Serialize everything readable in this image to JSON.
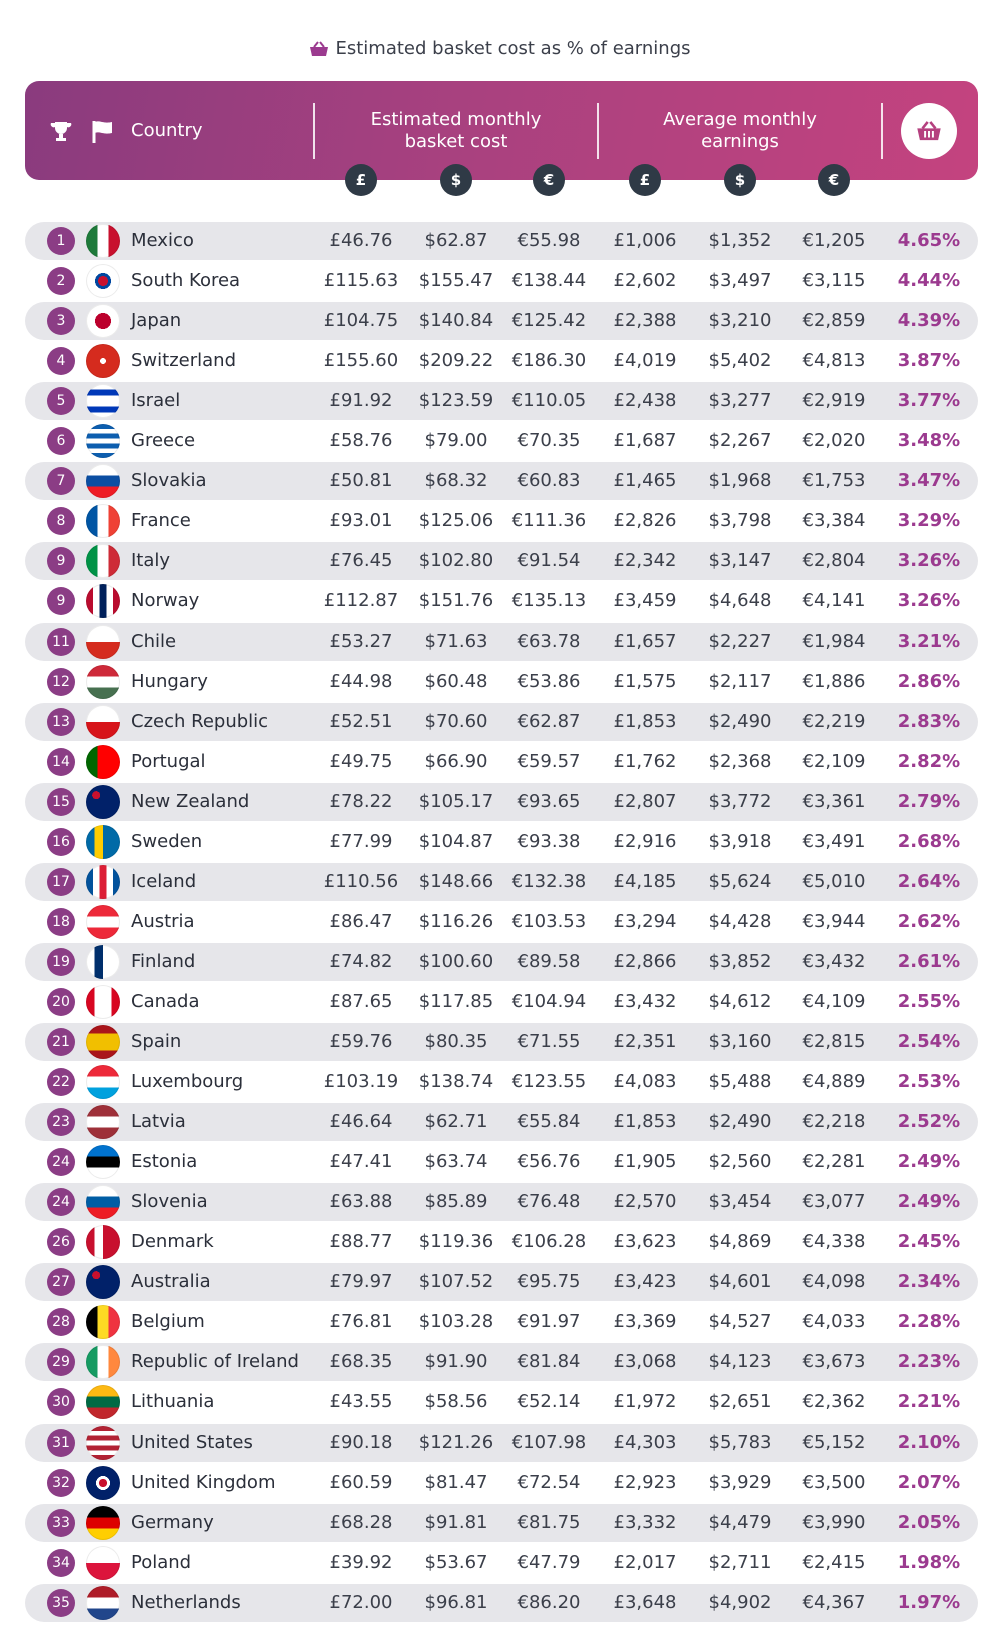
{
  "title": "Estimated basket cost as % of earnings",
  "header": {
    "country": "Country",
    "basket_cost": "Estimated monthly basket cost",
    "earnings": "Average monthly earnings",
    "currencies": [
      "£",
      "$",
      "€",
      "£",
      "$",
      "€"
    ]
  },
  "table": {
    "rows": [
      [
        "1",
        "Mexico",
        "£46.76",
        "$62.87",
        "€55.98",
        "£1,006",
        "$1,352",
        "€1,205",
        "4.65%"
      ],
      [
        "2",
        "South Korea",
        "£115.63",
        "$155.47",
        "€138.44",
        "£2,602",
        "$3,497",
        "€3,115",
        "4.44%"
      ],
      [
        "3",
        "Japan",
        "£104.75",
        "$140.84",
        "€125.42",
        "£2,388",
        "$3,210",
        "€2,859",
        "4.39%"
      ],
      [
        "4",
        "Switzerland",
        "£155.60",
        "$209.22",
        "€186.30",
        "£4,019",
        "$5,402",
        "€4,813",
        "3.87%"
      ],
      [
        "5",
        "Israel",
        "£91.92",
        "$123.59",
        "€110.05",
        "£2,438",
        "$3,277",
        "€2,919",
        "3.77%"
      ],
      [
        "6",
        "Greece",
        "£58.76",
        "$79.00",
        "€70.35",
        "£1,687",
        "$2,267",
        "€2,020",
        "3.48%"
      ],
      [
        "7",
        "Slovakia",
        "£50.81",
        "$68.32",
        "€60.83",
        "£1,465",
        "$1,968",
        "€1,753",
        "3.47%"
      ],
      [
        "8",
        "France",
        "£93.01",
        "$125.06",
        "€111.36",
        "£2,826",
        "$3,798",
        "€3,384",
        "3.29%"
      ],
      [
        "9",
        "Italy",
        "£76.45",
        "$102.80",
        "€91.54",
        "£2,342",
        "$3,147",
        "€2,804",
        "3.26%"
      ],
      [
        "9",
        "Norway",
        "£112.87",
        "$151.76",
        "€135.13",
        "£3,459",
        "$4,648",
        "€4,141",
        "3.26%"
      ],
      [
        "11",
        "Chile",
        "£53.27",
        "$71.63",
        "€63.78",
        "£1,657",
        "$2,227",
        "€1,984",
        "3.21%"
      ],
      [
        "12",
        "Hungary",
        "£44.98",
        "$60.48",
        "€53.86",
        "£1,575",
        "$2,117",
        "€1,886",
        "2.86%"
      ],
      [
        "13",
        "Czech Republic",
        "£52.51",
        "$70.60",
        "€62.87",
        "£1,853",
        "$2,490",
        "€2,219",
        "2.83%"
      ],
      [
        "14",
        "Portugal",
        "£49.75",
        "$66.90",
        "€59.57",
        "£1,762",
        "$2,368",
        "€2,109",
        "2.82%"
      ],
      [
        "15",
        "New Zealand",
        "£78.22",
        "$105.17",
        "€93.65",
        "£2,807",
        "$3,772",
        "€3,361",
        "2.79%"
      ],
      [
        "16",
        "Sweden",
        "£77.99",
        "$104.87",
        "€93.38",
        "£2,916",
        "$3,918",
        "€3,491",
        "2.68%"
      ],
      [
        "17",
        "Iceland",
        "£110.56",
        "$148.66",
        "€132.38",
        "£4,185",
        "$5,624",
        "€5,010",
        "2.64%"
      ],
      [
        "18",
        "Austria",
        "£86.47",
        "$116.26",
        "€103.53",
        "£3,294",
        "$4,428",
        "€3,944",
        "2.62%"
      ],
      [
        "19",
        "Finland",
        "£74.82",
        "$100.60",
        "€89.58",
        "£2,866",
        "$3,852",
        "€3,432",
        "2.61%"
      ],
      [
        "20",
        "Canada",
        "£87.65",
        "$117.85",
        "€104.94",
        "£3,432",
        "$4,612",
        "€4,109",
        "2.55%"
      ],
      [
        "21",
        "Spain",
        "£59.76",
        "$80.35",
        "€71.55",
        "£2,351",
        "$3,160",
        "€2,815",
        "2.54%"
      ],
      [
        "22",
        "Luxembourg",
        "£103.19",
        "$138.74",
        "€123.55",
        "£4,083",
        "$5,488",
        "€4,889",
        "2.53%"
      ],
      [
        "23",
        "Latvia",
        "£46.64",
        "$62.71",
        "€55.84",
        "£1,853",
        "$2,490",
        "€2,218",
        "2.52%"
      ],
      [
        "24",
        "Estonia",
        "£47.41",
        "$63.74",
        "€56.76",
        "£1,905",
        "$2,560",
        "€2,281",
        "2.49%"
      ],
      [
        "24",
        "Slovenia",
        "£63.88",
        "$85.89",
        "€76.48",
        "£2,570",
        "$3,454",
        "€3,077",
        "2.49%"
      ],
      [
        "26",
        "Denmark",
        "£88.77",
        "$119.36",
        "€106.28",
        "£3,623",
        "$4,869",
        "€4,338",
        "2.45%"
      ],
      [
        "27",
        "Australia",
        "£79.97",
        "$107.52",
        "€95.75",
        "£3,423",
        "$4,601",
        "€4,098",
        "2.34%"
      ],
      [
        "28",
        "Belgium",
        "£76.81",
        "$103.28",
        "€91.97",
        "£3,369",
        "$4,527",
        "€4,033",
        "2.28%"
      ],
      [
        "29",
        "Republic of Ireland",
        "£68.35",
        "$91.90",
        "€81.84",
        "£3,068",
        "$4,123",
        "€3,673",
        "2.23%"
      ],
      [
        "30",
        "Lithuania",
        "£43.55",
        "$58.56",
        "€52.14",
        "£1,972",
        "$2,651",
        "€2,362",
        "2.21%"
      ],
      [
        "31",
        "United States",
        "£90.18",
        "$121.26",
        "€107.98",
        "£4,303",
        "$5,783",
        "€5,152",
        "2.10%"
      ],
      [
        "32",
        "United Kingdom",
        "£60.59",
        "$81.47",
        "€72.54",
        "£2,923",
        "$3,929",
        "€3,500",
        "2.07%"
      ],
      [
        "33",
        "Germany",
        "£68.28",
        "$91.81",
        "€81.75",
        "£3,332",
        "$4,479",
        "€3,990",
        "2.05%"
      ],
      [
        "34",
        "Poland",
        "£39.92",
        "$53.67",
        "€47.79",
        "£2,017",
        "$2,711",
        "€2,415",
        "1.98%"
      ],
      [
        "35",
        "Netherlands",
        "£72.00",
        "$96.81",
        "€86.20",
        "£3,648",
        "$4,902",
        "€4,367",
        "1.97%"
      ]
    ]
  }
}
